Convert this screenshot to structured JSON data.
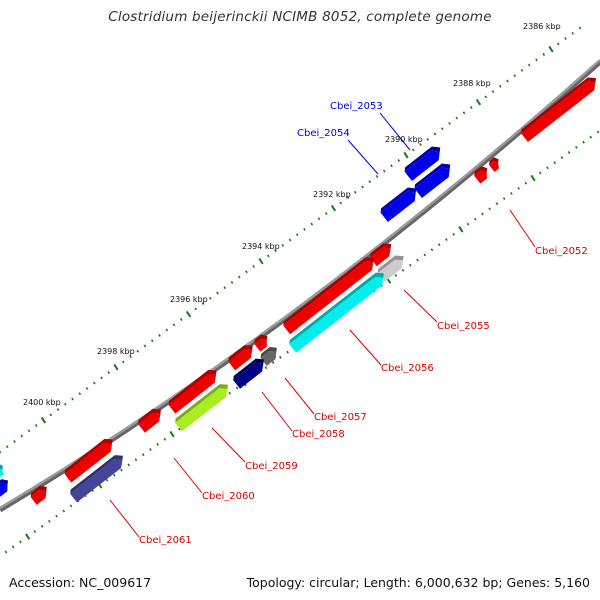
{
  "title": "Clostridium beijerinckii NCIMB 8052, complete genome",
  "footer": {
    "accession": "Accession: NC_009617",
    "stats": "Topology: circular; Length: 6,000,632 bp; Genes: 5,160"
  },
  "colors": {
    "backbone": "#888888",
    "tick_outer": "#1a7a1a",
    "tick_inner": "#1a7a1a",
    "forward_label": "#0000dd",
    "reverse_label": "#dd0000"
  },
  "scale_labels": [
    "2386 kbp",
    "2388 kbp",
    "2390 kbp",
    "2392 kbp",
    "2394 kbp",
    "2396 kbp",
    "2398 kbp",
    "2400 kbp"
  ],
  "gene_labels": [
    {
      "text": "Cbei_2052",
      "color": "#dd0000"
    },
    {
      "text": "Cbei_2053",
      "color": "#0000dd"
    },
    {
      "text": "Cbei_2054",
      "color": "#0000dd"
    },
    {
      "text": "Cbei_2055",
      "color": "#dd0000"
    },
    {
      "text": "Cbei_2056",
      "color": "#dd0000"
    },
    {
      "text": "Cbei_2057",
      "color": "#dd0000"
    },
    {
      "text": "Cbei_2058",
      "color": "#dd0000"
    },
    {
      "text": "Cbei_2059",
      "color": "#dd0000"
    },
    {
      "text": "Cbei_2060",
      "color": "#dd0000"
    },
    {
      "text": "Cbei_2061",
      "color": "#dd0000"
    }
  ],
  "feature_colors": {
    "cds_forward": "#0000ee",
    "cds_reverse": "#ee0000",
    "cog_cyan": "#00eeee",
    "cog_lightgray": "#cccccc",
    "cog_darkgray": "#666666",
    "cog_navy": "#000080",
    "cog_lime": "#aaee22",
    "cog_slateblue": "#444499"
  }
}
